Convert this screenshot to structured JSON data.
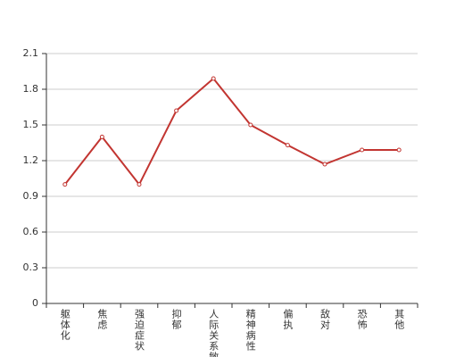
{
  "chart_data": {
    "type": "line",
    "categories": [
      "躯体化",
      "焦虑",
      "强迫症状",
      "抑郁",
      "人际关系敏感",
      "精神病性",
      "偏执",
      "敌对",
      "恐怖",
      "其他"
    ],
    "values": [
      1.0,
      1.4,
      1.0,
      1.62,
      1.89,
      1.5,
      1.33,
      1.17,
      1.29,
      1.29
    ],
    "color": "#c23531",
    "ylim": [
      0,
      2.1
    ],
    "yticks": [
      0,
      0.3,
      0.6,
      0.9,
      1.2,
      1.5,
      1.8,
      2.1
    ],
    "grid": true
  }
}
